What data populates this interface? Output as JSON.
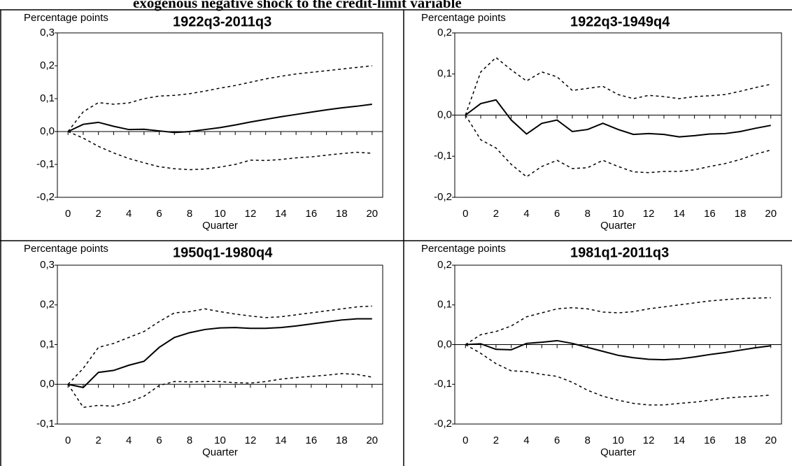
{
  "figure_title": "exogenous negative shock to the credit-limit variable",
  "chart_data": [
    {
      "type": "line",
      "title": "1922q3-2011q3",
      "y_label": "Percentage points",
      "x_label": "Quarter",
      "x": [
        0,
        1,
        2,
        3,
        4,
        5,
        6,
        7,
        8,
        9,
        10,
        11,
        12,
        13,
        14,
        15,
        16,
        17,
        18,
        19,
        20
      ],
      "xlim": [
        -0.7,
        20.7
      ],
      "xticks": [
        0,
        2,
        4,
        6,
        8,
        10,
        12,
        14,
        16,
        18,
        20
      ],
      "ylim": [
        -0.2,
        0.3
      ],
      "yticks": [
        {
          "value": -0.2,
          "label": "-0,2"
        },
        {
          "value": -0.1,
          "label": "-0,1"
        },
        {
          "value": 0,
          "label": "0,0"
        },
        {
          "value": 0.1,
          "label": "0,1"
        },
        {
          "value": 0.2,
          "label": "0,2"
        },
        {
          "value": 0.3,
          "label": "0,3"
        }
      ],
      "series": [
        {
          "color": "#000000",
          "style": "solid",
          "values": [
            0,
            0.022,
            0.028,
            0.016,
            0.006,
            0.007,
            0.002,
            -0.003,
            0.0,
            0.006,
            0.012,
            0.02,
            0.029,
            0.037,
            0.045,
            0.052,
            0.059,
            0.066,
            0.072,
            0.077,
            0.083
          ]
        },
        {
          "color": "#000000",
          "style": "dashed",
          "values": [
            0,
            0.06,
            0.088,
            0.083,
            0.087,
            0.1,
            0.108,
            0.11,
            0.115,
            0.123,
            0.132,
            0.14,
            0.15,
            0.16,
            0.168,
            0.175,
            0.18,
            0.185,
            0.19,
            0.195,
            0.2
          ]
        },
        {
          "color": "#000000",
          "style": "dashed",
          "values": [
            0,
            -0.02,
            -0.045,
            -0.065,
            -0.082,
            -0.095,
            -0.107,
            -0.113,
            -0.116,
            -0.114,
            -0.108,
            -0.1,
            -0.087,
            -0.088,
            -0.085,
            -0.08,
            -0.077,
            -0.072,
            -0.067,
            -0.063,
            -0.066
          ]
        }
      ]
    },
    {
      "type": "line",
      "title": "1922q3-1949q4",
      "y_label": "Percentage points",
      "x_label": "Quarter",
      "x": [
        0,
        1,
        2,
        3,
        4,
        5,
        6,
        7,
        8,
        9,
        10,
        11,
        12,
        13,
        14,
        15,
        16,
        17,
        18,
        19,
        20
      ],
      "xlim": [
        -0.7,
        20.7
      ],
      "xticks": [
        0,
        2,
        4,
        6,
        8,
        10,
        12,
        14,
        16,
        18,
        20
      ],
      "ylim": [
        -0.2,
        0.2
      ],
      "yticks": [
        {
          "value": -0.2,
          "label": "-0,2"
        },
        {
          "value": -0.1,
          "label": "-0,1"
        },
        {
          "value": 0,
          "label": "0,0"
        },
        {
          "value": 0.1,
          "label": "0,1"
        },
        {
          "value": 0.2,
          "label": "0,2"
        }
      ],
      "series": [
        {
          "color": "#000000",
          "style": "solid",
          "values": [
            0,
            0.028,
            0.037,
            -0.012,
            -0.046,
            -0.02,
            -0.012,
            -0.04,
            -0.035,
            -0.02,
            -0.035,
            -0.047,
            -0.045,
            -0.047,
            -0.053,
            -0.05,
            -0.046,
            -0.045,
            -0.04,
            -0.032,
            -0.025
          ]
        },
        {
          "color": "#000000",
          "style": "dashed",
          "values": [
            0,
            0.105,
            0.14,
            0.11,
            0.083,
            0.105,
            0.093,
            0.06,
            0.065,
            0.07,
            0.05,
            0.04,
            0.048,
            0.045,
            0.04,
            0.045,
            0.047,
            0.05,
            0.058,
            0.067,
            0.075
          ]
        },
        {
          "color": "#000000",
          "style": "dashed",
          "values": [
            0,
            -0.06,
            -0.08,
            -0.12,
            -0.15,
            -0.125,
            -0.11,
            -0.13,
            -0.128,
            -0.11,
            -0.125,
            -0.138,
            -0.14,
            -0.137,
            -0.137,
            -0.133,
            -0.125,
            -0.118,
            -0.108,
            -0.095,
            -0.085
          ]
        }
      ]
    },
    {
      "type": "line",
      "title": "1950q1-1980q4",
      "y_label": "Percentage points",
      "x_label": "Quarter",
      "x": [
        0,
        1,
        2,
        3,
        4,
        5,
        6,
        7,
        8,
        9,
        10,
        11,
        12,
        13,
        14,
        15,
        16,
        17,
        18,
        19,
        20
      ],
      "xlim": [
        -0.7,
        20.7
      ],
      "xticks": [
        0,
        2,
        4,
        6,
        8,
        10,
        12,
        14,
        16,
        18,
        20
      ],
      "ylim": [
        -0.1,
        0.3
      ],
      "yticks": [
        {
          "value": -0.1,
          "label": "-0,1"
        },
        {
          "value": 0,
          "label": "0,0"
        },
        {
          "value": 0.1,
          "label": "0,1"
        },
        {
          "value": 0.2,
          "label": "0,2"
        },
        {
          "value": 0.3,
          "label": "0,3"
        }
      ],
      "series": [
        {
          "color": "#000000",
          "style": "solid",
          "values": [
            0,
            -0.008,
            0.03,
            0.035,
            0.048,
            0.058,
            0.093,
            0.118,
            0.13,
            0.138,
            0.142,
            0.143,
            0.141,
            0.141,
            0.143,
            0.147,
            0.152,
            0.157,
            0.162,
            0.165,
            0.165
          ]
        },
        {
          "color": "#000000",
          "style": "dashed",
          "values": [
            0,
            0.04,
            0.093,
            0.103,
            0.118,
            0.133,
            0.158,
            0.18,
            0.183,
            0.19,
            0.183,
            0.177,
            0.172,
            0.168,
            0.17,
            0.175,
            0.18,
            0.185,
            0.19,
            0.195,
            0.197
          ]
        },
        {
          "color": "#000000",
          "style": "dashed",
          "values": [
            0,
            -0.058,
            -0.053,
            -0.055,
            -0.045,
            -0.03,
            -0.003,
            0.007,
            0.006,
            0.007,
            0.007,
            0.004,
            0.003,
            0.007,
            0.013,
            0.017,
            0.02,
            0.023,
            0.027,
            0.025,
            0.018
          ]
        }
      ]
    },
    {
      "type": "line",
      "title": "1981q1-2011q3",
      "y_label": "Percentage points",
      "x_label": "Quarter",
      "x": [
        0,
        1,
        2,
        3,
        4,
        5,
        6,
        7,
        8,
        9,
        10,
        11,
        12,
        13,
        14,
        15,
        16,
        17,
        18,
        19,
        20
      ],
      "xlim": [
        -0.7,
        20.7
      ],
      "xticks": [
        0,
        2,
        4,
        6,
        8,
        10,
        12,
        14,
        16,
        18,
        20
      ],
      "ylim": [
        -0.2,
        0.2
      ],
      "yticks": [
        {
          "value": -0.2,
          "label": "-0,2"
        },
        {
          "value": -0.1,
          "label": "-0,1"
        },
        {
          "value": 0,
          "label": "0,0"
        },
        {
          "value": 0.1,
          "label": "0,1"
        },
        {
          "value": 0.2,
          "label": "0,2"
        }
      ],
      "series": [
        {
          "color": "#000000",
          "style": "solid",
          "values": [
            0,
            0.002,
            -0.012,
            -0.013,
            0.003,
            0.006,
            0.01,
            0.003,
            -0.007,
            -0.017,
            -0.027,
            -0.033,
            -0.037,
            -0.038,
            -0.036,
            -0.031,
            -0.025,
            -0.02,
            -0.014,
            -0.008,
            -0.003
          ]
        },
        {
          "color": "#000000",
          "style": "dashed",
          "values": [
            0,
            0.025,
            0.033,
            0.047,
            0.07,
            0.08,
            0.09,
            0.093,
            0.09,
            0.082,
            0.08,
            0.083,
            0.09,
            0.095,
            0.1,
            0.105,
            0.11,
            0.113,
            0.116,
            0.117,
            0.118
          ]
        },
        {
          "color": "#000000",
          "style": "dashed",
          "values": [
            0,
            -0.022,
            -0.048,
            -0.066,
            -0.068,
            -0.075,
            -0.08,
            -0.095,
            -0.115,
            -0.13,
            -0.14,
            -0.148,
            -0.152,
            -0.152,
            -0.148,
            -0.145,
            -0.14,
            -0.135,
            -0.132,
            -0.13,
            -0.127
          ]
        }
      ]
    }
  ]
}
